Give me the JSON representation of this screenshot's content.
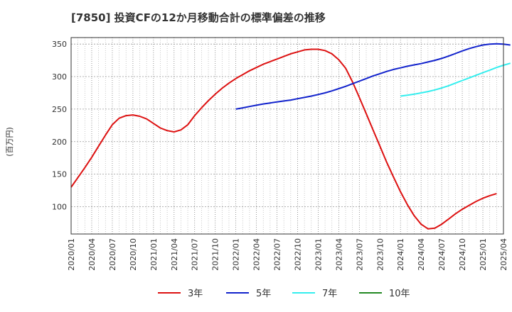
{
  "chart_data": {
    "type": "line",
    "title": "[7850]  投資CFの12か月移動合計の標準偏差の推移",
    "ylabel": "(百万円)",
    "xlabel": "",
    "ylim": [
      58,
      360
    ],
    "yticks": [
      100,
      150,
      200,
      250,
      300,
      350
    ],
    "xlim": [
      "2020-01",
      "2025-04"
    ],
    "xticks": [
      "2020/01",
      "2020/04",
      "2020/07",
      "2020/10",
      "2021/01",
      "2021/04",
      "2021/07",
      "2021/10",
      "2022/01",
      "2022/04",
      "2022/07",
      "2022/10",
      "2023/01",
      "2023/04",
      "2023/07",
      "2023/10",
      "2024/01",
      "2024/04",
      "2024/07",
      "2024/10",
      "2025/01",
      "2025/04"
    ],
    "grid": true,
    "legend_position": "bottom",
    "series": [
      {
        "name": "3年",
        "color": "#dd1111",
        "points": [
          [
            "2020-01",
            130
          ],
          [
            "2020-02",
            145
          ],
          [
            "2020-03",
            160
          ],
          [
            "2020-04",
            176
          ],
          [
            "2020-05",
            193
          ],
          [
            "2020-06",
            210
          ],
          [
            "2020-07",
            226
          ],
          [
            "2020-08",
            236
          ],
          [
            "2020-09",
            240
          ],
          [
            "2020-10",
            241
          ],
          [
            "2020-11",
            239
          ],
          [
            "2020-12",
            235
          ],
          [
            "2021-01",
            228
          ],
          [
            "2021-02",
            221
          ],
          [
            "2021-03",
            217
          ],
          [
            "2021-04",
            215
          ],
          [
            "2021-05",
            218
          ],
          [
            "2021-06",
            226
          ],
          [
            "2021-07",
            240
          ],
          [
            "2021-08",
            252
          ],
          [
            "2021-09",
            263
          ],
          [
            "2021-10",
            273
          ],
          [
            "2021-11",
            282
          ],
          [
            "2021-12",
            290
          ],
          [
            "2022-01",
            297
          ],
          [
            "2022-02",
            303
          ],
          [
            "2022-03",
            309
          ],
          [
            "2022-04",
            314
          ],
          [
            "2022-05",
            319
          ],
          [
            "2022-06",
            323
          ],
          [
            "2022-07",
            327
          ],
          [
            "2022-08",
            331
          ],
          [
            "2022-09",
            335
          ],
          [
            "2022-10",
            338
          ],
          [
            "2022-11",
            341
          ],
          [
            "2022-12",
            342
          ],
          [
            "2023-01",
            342
          ],
          [
            "2023-02",
            340
          ],
          [
            "2023-03",
            335
          ],
          [
            "2023-04",
            326
          ],
          [
            "2023-05",
            313
          ],
          [
            "2023-06",
            292
          ],
          [
            "2023-07",
            268
          ],
          [
            "2023-08",
            243
          ],
          [
            "2023-09",
            218
          ],
          [
            "2023-10",
            193
          ],
          [
            "2023-11",
            168
          ],
          [
            "2023-12",
            145
          ],
          [
            "2024-01",
            123
          ],
          [
            "2024-02",
            103
          ],
          [
            "2024-03",
            86
          ],
          [
            "2024-04",
            73
          ],
          [
            "2024-05",
            66
          ],
          [
            "2024-06",
            67
          ],
          [
            "2024-07",
            73
          ],
          [
            "2024-08",
            81
          ],
          [
            "2024-09",
            89
          ],
          [
            "2024-10",
            96
          ],
          [
            "2024-11",
            102
          ],
          [
            "2024-12",
            108
          ],
          [
            "2025-01",
            113
          ],
          [
            "2025-02",
            117
          ],
          [
            "2025-03",
            120
          ]
        ]
      },
      {
        "name": "5年",
        "color": "#1122cc",
        "points": [
          [
            "2022-01",
            250
          ],
          [
            "2022-02",
            252
          ],
          [
            "2022-03",
            254
          ],
          [
            "2022-04",
            256
          ],
          [
            "2022-05",
            258
          ],
          [
            "2022-06",
            259.5
          ],
          [
            "2022-07",
            261
          ],
          [
            "2022-08",
            262.5
          ],
          [
            "2022-09",
            264
          ],
          [
            "2022-10",
            266
          ],
          [
            "2022-11",
            268
          ],
          [
            "2022-12",
            270
          ],
          [
            "2023-01",
            272.5
          ],
          [
            "2023-02",
            275
          ],
          [
            "2023-03",
            278
          ],
          [
            "2023-04",
            281.5
          ],
          [
            "2023-05",
            285
          ],
          [
            "2023-06",
            289
          ],
          [
            "2023-07",
            293
          ],
          [
            "2023-08",
            297
          ],
          [
            "2023-09",
            301
          ],
          [
            "2023-10",
            304.5
          ],
          [
            "2023-11",
            308
          ],
          [
            "2023-12",
            311
          ],
          [
            "2024-01",
            313.5
          ],
          [
            "2024-02",
            316
          ],
          [
            "2024-03",
            318
          ],
          [
            "2024-04",
            320
          ],
          [
            "2024-05",
            322.5
          ],
          [
            "2024-06",
            325
          ],
          [
            "2024-07",
            328
          ],
          [
            "2024-08",
            331.5
          ],
          [
            "2024-09",
            335.5
          ],
          [
            "2024-10",
            339.5
          ],
          [
            "2024-11",
            343
          ],
          [
            "2024-12",
            346
          ],
          [
            "2025-01",
            348.5
          ],
          [
            "2025-02",
            350
          ],
          [
            "2025-03",
            350.5
          ],
          [
            "2025-04",
            350
          ],
          [
            "2025-05",
            348.5
          ]
        ]
      },
      {
        "name": "7年",
        "color": "#33eeee",
        "points": [
          [
            "2024-01",
            270
          ],
          [
            "2024-02",
            271.5
          ],
          [
            "2024-03",
            273
          ],
          [
            "2024-04",
            275
          ],
          [
            "2024-05",
            277
          ],
          [
            "2024-06",
            279.5
          ],
          [
            "2024-07",
            282.5
          ],
          [
            "2024-08",
            286
          ],
          [
            "2024-09",
            290
          ],
          [
            "2024-10",
            294
          ],
          [
            "2024-11",
            298
          ],
          [
            "2024-12",
            302
          ],
          [
            "2025-01",
            306
          ],
          [
            "2025-02",
            310
          ],
          [
            "2025-03",
            314
          ],
          [
            "2025-04",
            317.5
          ],
          [
            "2025-05",
            320.5
          ]
        ]
      },
      {
        "name": "10年",
        "color": "#228822",
        "points": []
      }
    ]
  }
}
